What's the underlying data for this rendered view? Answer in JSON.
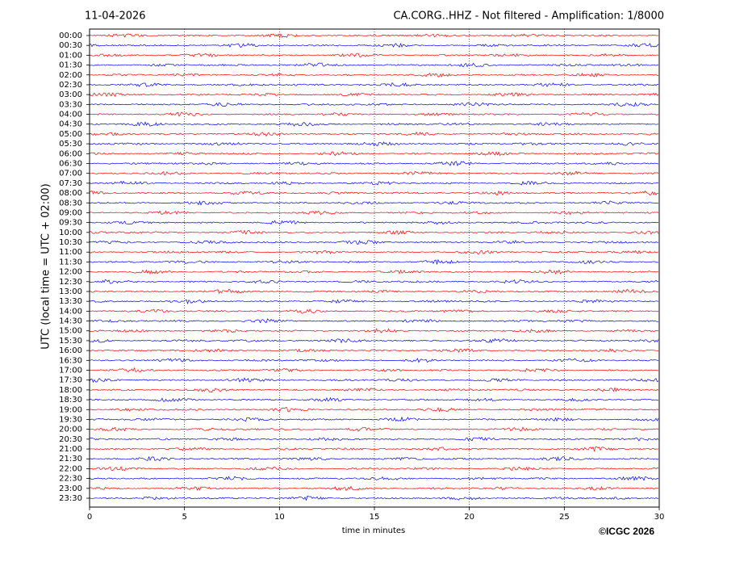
{
  "chart_data": {
    "type": "helicorder",
    "date": "11-04-2026",
    "title": "CA.CORG..HHZ - Not filtered - Amplification: 1/8000",
    "categories": [
      "00:00",
      "00:30",
      "01:00",
      "01:30",
      "02:00",
      "02:30",
      "03:00",
      "03:30",
      "04:00",
      "04:30",
      "05:00",
      "05:30",
      "06:00",
      "06:30",
      "07:00",
      "07:30",
      "08:00",
      "08:30",
      "09:00",
      "09:30",
      "10:00",
      "10:30",
      "11:00",
      "11:30",
      "12:00",
      "12:30",
      "13:00",
      "13:30",
      "14:00",
      "14:30",
      "15:00",
      "15:30",
      "16:00",
      "16:30",
      "17:00",
      "17:30",
      "18:00",
      "18:30",
      "19:00",
      "19:30",
      "20:00",
      "20:30",
      "21:00",
      "21:30",
      "22:00",
      "22:30",
      "23:00",
      "23:30"
    ],
    "colors": [
      "#ff0000",
      "#0000ff"
    ],
    "xlabel": "time in minutes",
    "ylabel": "UTC (local time = UTC + 02:00)",
    "xlim": [
      0,
      30
    ],
    "xticks": [
      0,
      5,
      10,
      15,
      20,
      25,
      30
    ],
    "grid": true
  },
  "footer": {
    "copyright": "©ICGC 2026"
  }
}
